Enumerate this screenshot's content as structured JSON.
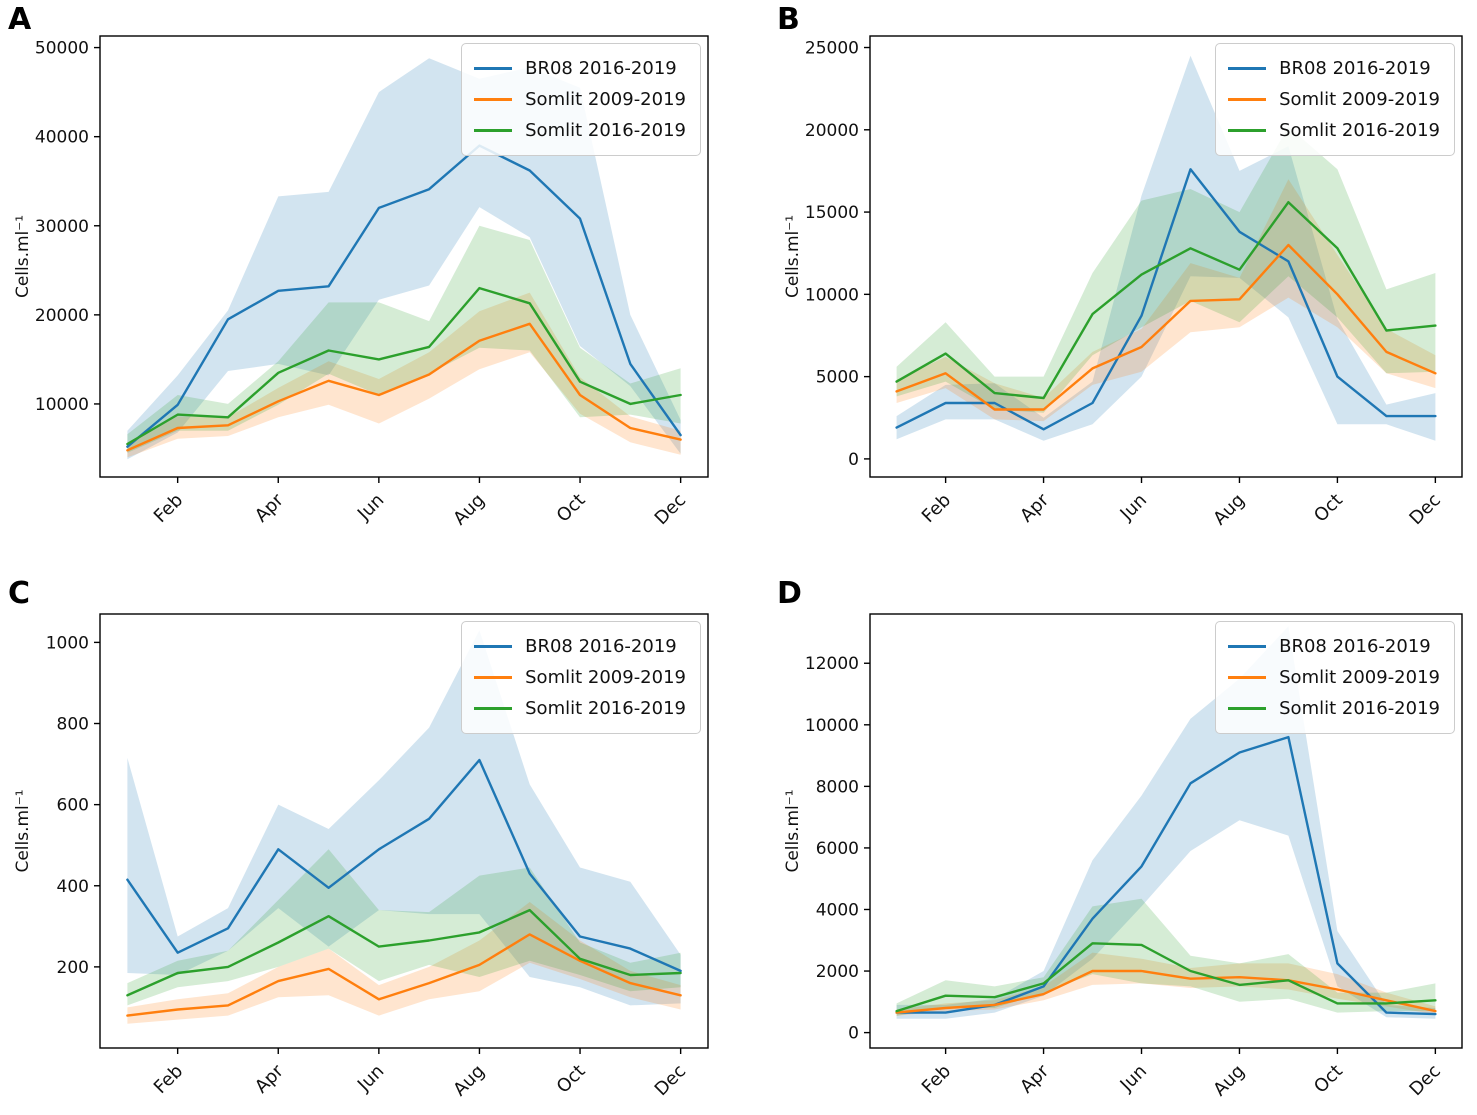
{
  "figure": {
    "type": "multipanel-line-chart",
    "background": "#ffffff",
    "x_months": [
      "Jan",
      "Feb",
      "Mar",
      "Apr",
      "May",
      "Jun",
      "Jul",
      "Aug",
      "Sep",
      "Oct",
      "Nov",
      "Dec"
    ],
    "x_tick_labels": [
      "Feb",
      "Apr",
      "Jun",
      "Aug",
      "Oct",
      "Dec"
    ],
    "x_tick_indices": [
      1,
      3,
      5,
      7,
      9,
      11
    ],
    "colors": {
      "br08": "#1f77b4",
      "somlit2009": "#ff7f0e",
      "somlit2016": "#2ca02c"
    },
    "band_opacity": 0.2,
    "legend_labels": [
      "BR08 2016-2019",
      "Somlit 2009-2019",
      "Somlit 2016-2019"
    ]
  },
  "chart_data": [
    {
      "type": "line",
      "panel_label": "A",
      "ylabel": "Cells.ml⁻¹",
      "ylim": [
        1800,
        51300
      ],
      "yticks": [
        10000,
        20000,
        30000,
        40000,
        50000
      ],
      "ytick_labels": [
        "10000",
        "20000",
        "30000",
        "40000",
        "50000"
      ],
      "x": [
        "Jan",
        "Feb",
        "Mar",
        "Apr",
        "May",
        "Jun",
        "Jul",
        "Aug",
        "Sep",
        "Oct",
        "Nov",
        "Dec"
      ],
      "legend_position": "upper right",
      "series": [
        {
          "name": "BR08 2016-2019",
          "color": "#1f77b4",
          "values": [
            5200,
            9900,
            19500,
            22700,
            23200,
            32000,
            34100,
            39000,
            36200,
            30800,
            14500,
            6500
          ],
          "band_upper": [
            7000,
            13200,
            20500,
            33300,
            33800,
            45000,
            48800,
            46500,
            47800,
            45500,
            20000,
            8200
          ],
          "band_lower": [
            3800,
            6800,
            13700,
            14500,
            13200,
            21700,
            23300,
            32100,
            28700,
            16500,
            12000,
            4400
          ]
        },
        {
          "name": "Somlit 2009-2019",
          "color": "#ff7f0e",
          "values": [
            4800,
            7300,
            7600,
            10300,
            12600,
            11000,
            13300,
            17100,
            19000,
            11000,
            7300,
            6000
          ],
          "band_upper": [
            5600,
            8600,
            8500,
            11800,
            14800,
            12800,
            15800,
            20400,
            22500,
            13000,
            8600,
            7000
          ],
          "band_lower": [
            4000,
            6100,
            6400,
            8500,
            9900,
            7800,
            10600,
            13900,
            15800,
            8900,
            5700,
            4300
          ]
        },
        {
          "name": "Somlit 2016-2019",
          "color": "#2ca02c",
          "values": [
            5500,
            8800,
            8500,
            13500,
            16000,
            15000,
            16400,
            23000,
            21300,
            12500,
            10000,
            11000
          ],
          "band_upper": [
            6600,
            11000,
            10000,
            14800,
            21400,
            21400,
            19300,
            30000,
            28400,
            16300,
            12300,
            14000
          ],
          "band_lower": [
            4500,
            7000,
            7000,
            9900,
            13400,
            11000,
            13400,
            16300,
            16000,
            8500,
            8800,
            7800
          ]
        }
      ]
    },
    {
      "type": "line",
      "panel_label": "B",
      "ylabel": "Cells.ml⁻¹",
      "ylim": [
        -1100,
        25700
      ],
      "yticks": [
        0,
        5000,
        10000,
        15000,
        20000,
        25000
      ],
      "ytick_labels": [
        "0",
        "5000",
        "10000",
        "15000",
        "20000",
        "25000"
      ],
      "x": [
        "Jan",
        "Feb",
        "Mar",
        "Apr",
        "May",
        "Jun",
        "Jul",
        "Aug",
        "Sep",
        "Oct",
        "Nov",
        "Dec"
      ],
      "legend_position": "upper right",
      "series": [
        {
          "name": "BR08 2016-2019",
          "color": "#1f77b4",
          "values": [
            1900,
            3400,
            3400,
            1800,
            3400,
            8700,
            17600,
            13800,
            12000,
            5000,
            2600,
            2600
          ],
          "band_upper": [
            2600,
            4500,
            4600,
            2500,
            4700,
            16000,
            24500,
            17500,
            19000,
            8500,
            3300,
            4000
          ],
          "band_lower": [
            1200,
            2400,
            2400,
            1100,
            2100,
            5000,
            11100,
            11000,
            8600,
            2100,
            2100,
            1100
          ]
        },
        {
          "name": "Somlit 2009-2019",
          "color": "#ff7f0e",
          "values": [
            4100,
            5200,
            3000,
            3000,
            5500,
            6800,
            9600,
            9700,
            13000,
            10000,
            6500,
            5200
          ],
          "band_upper": [
            4800,
            6200,
            4600,
            3700,
            6500,
            7900,
            11900,
            11000,
            17000,
            12400,
            7900,
            6300
          ],
          "band_lower": [
            3400,
            4300,
            2400,
            2300,
            4500,
            5300,
            7700,
            8000,
            9800,
            8000,
            5200,
            4300
          ]
        },
        {
          "name": "Somlit 2016-2019",
          "color": "#2ca02c",
          "values": [
            4700,
            6400,
            4000,
            3700,
            8800,
            11200,
            12800,
            11500,
            15600,
            12800,
            7800,
            8100
          ],
          "band_upper": [
            5600,
            8300,
            5000,
            5000,
            11300,
            15700,
            16400,
            15000,
            20200,
            17600,
            10300,
            11300
          ],
          "band_lower": [
            3800,
            4700,
            3000,
            2800,
            6300,
            8000,
            9600,
            8300,
            11100,
            8600,
            5200,
            5300
          ]
        }
      ]
    },
    {
      "type": "line",
      "panel_label": "C",
      "ylabel": "Cells.ml⁻¹",
      "ylim": [
        0,
        1070
      ],
      "yticks": [
        200,
        400,
        600,
        800,
        1000
      ],
      "ytick_labels": [
        "200",
        "400",
        "600",
        "800",
        "1000"
      ],
      "x": [
        "Jan",
        "Feb",
        "Mar",
        "Apr",
        "May",
        "Jun",
        "Jul",
        "Aug",
        "Sep",
        "Oct",
        "Nov",
        "Dec"
      ],
      "legend_position": "upper right",
      "series": [
        {
          "name": "BR08 2016-2019",
          "color": "#1f77b4",
          "values": [
            415,
            235,
            295,
            490,
            395,
            490,
            565,
            710,
            430,
            275,
            245,
            190
          ],
          "band_upper": [
            715,
            275,
            345,
            600,
            540,
            660,
            790,
            1030,
            650,
            445,
            410,
            230
          ],
          "band_lower": [
            185,
            180,
            240,
            345,
            250,
            340,
            330,
            330,
            175,
            150,
            105,
            110
          ]
        },
        {
          "name": "Somlit 2009-2019",
          "color": "#ff7f0e",
          "values": [
            80,
            95,
            105,
            165,
            195,
            120,
            160,
            205,
            280,
            215,
            160,
            130
          ],
          "band_upper": [
            100,
            120,
            135,
            200,
            245,
            155,
            200,
            265,
            360,
            265,
            190,
            155
          ],
          "band_lower": [
            60,
            70,
            80,
            125,
            130,
            80,
            120,
            140,
            210,
            170,
            125,
            95
          ]
        },
        {
          "name": "Somlit 2016-2019",
          "color": "#2ca02c",
          "values": [
            130,
            185,
            200,
            260,
            325,
            250,
            265,
            285,
            340,
            220,
            180,
            185
          ],
          "band_upper": [
            160,
            215,
            240,
            365,
            490,
            340,
            335,
            425,
            445,
            260,
            210,
            235
          ],
          "band_lower": [
            105,
            150,
            165,
            200,
            245,
            165,
            205,
            175,
            215,
            180,
            140,
            150
          ]
        }
      ]
    },
    {
      "type": "line",
      "panel_label": "D",
      "ylabel": "Cells.ml⁻¹",
      "ylim": [
        -500,
        13600
      ],
      "yticks": [
        0,
        2000,
        4000,
        6000,
        8000,
        10000,
        12000
      ],
      "ytick_labels": [
        "0",
        "2000",
        "4000",
        "6000",
        "8000",
        "10000",
        "12000"
      ],
      "x": [
        "Jan",
        "Feb",
        "Mar",
        "Apr",
        "May",
        "Jun",
        "Jul",
        "Aug",
        "Sep",
        "Oct",
        "Nov",
        "Dec"
      ],
      "legend_position": "upper right",
      "series": [
        {
          "name": "BR08 2016-2019",
          "color": "#1f77b4",
          "values": [
            650,
            650,
            900,
            1500,
            3700,
            5400,
            8100,
            9100,
            9600,
            2250,
            650,
            600
          ],
          "band_upper": [
            900,
            900,
            1100,
            2000,
            5600,
            7700,
            10200,
            11500,
            13200,
            3300,
            900,
            800
          ],
          "band_lower": [
            450,
            450,
            650,
            1200,
            2400,
            4100,
            5900,
            6900,
            6400,
            1500,
            500,
            450
          ]
        },
        {
          "name": "Somlit 2009-2019",
          "color": "#ff7f0e",
          "values": [
            650,
            800,
            900,
            1250,
            2000,
            2000,
            1750,
            1800,
            1700,
            1400,
            1050,
            700
          ],
          "band_upper": [
            750,
            950,
            1050,
            1500,
            2600,
            2400,
            2100,
            2250,
            2250,
            1900,
            1300,
            850
          ],
          "band_lower": [
            550,
            700,
            750,
            1050,
            1550,
            1600,
            1450,
            1500,
            1400,
            1100,
            850,
            600
          ]
        },
        {
          "name": "Somlit 2016-2019",
          "color": "#2ca02c",
          "values": [
            700,
            1200,
            1150,
            1600,
            2900,
            2850,
            2000,
            1550,
            1700,
            950,
            950,
            1050
          ],
          "band_upper": [
            950,
            1700,
            1500,
            1800,
            4100,
            4350,
            2500,
            2250,
            2550,
            1300,
            1300,
            1600
          ],
          "band_lower": [
            550,
            800,
            800,
            1300,
            1900,
            1600,
            1500,
            1000,
            1100,
            650,
            700,
            700
          ]
        }
      ]
    }
  ]
}
